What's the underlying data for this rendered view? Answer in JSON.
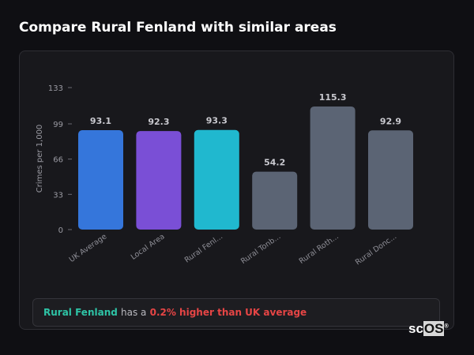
{
  "title": "Compare Rural Fenland with similar areas",
  "chart_data": {
    "type": "bar",
    "ylabel": "Crimes per 1,000",
    "xlabel": "",
    "ylim": [
      0,
      133
    ],
    "yticks": [
      0,
      33,
      66,
      99,
      133
    ],
    "categories": [
      "UK Average",
      "Local Area",
      "Rural Fenl...",
      "Rural Tonb...",
      "Rural Roth...",
      "Rural Donc..."
    ],
    "values": [
      93.1,
      92.3,
      93.3,
      54.2,
      115.3,
      92.9
    ],
    "value_labels": [
      "93.1",
      "92.3",
      "93.3",
      "54.2",
      "115.3",
      "92.9"
    ],
    "colors": [
      "#3576db",
      "#7a4fd6",
      "#20b8cf",
      "#5b6474",
      "#5b6474",
      "#5b6474"
    ],
    "grid": false
  },
  "insight": {
    "area": "Rural Fenland",
    "mid": "has a",
    "result": "0.2% higher than UK average"
  },
  "logo": {
    "text_a": "sc",
    "text_b": "OS",
    "mark": "®"
  }
}
